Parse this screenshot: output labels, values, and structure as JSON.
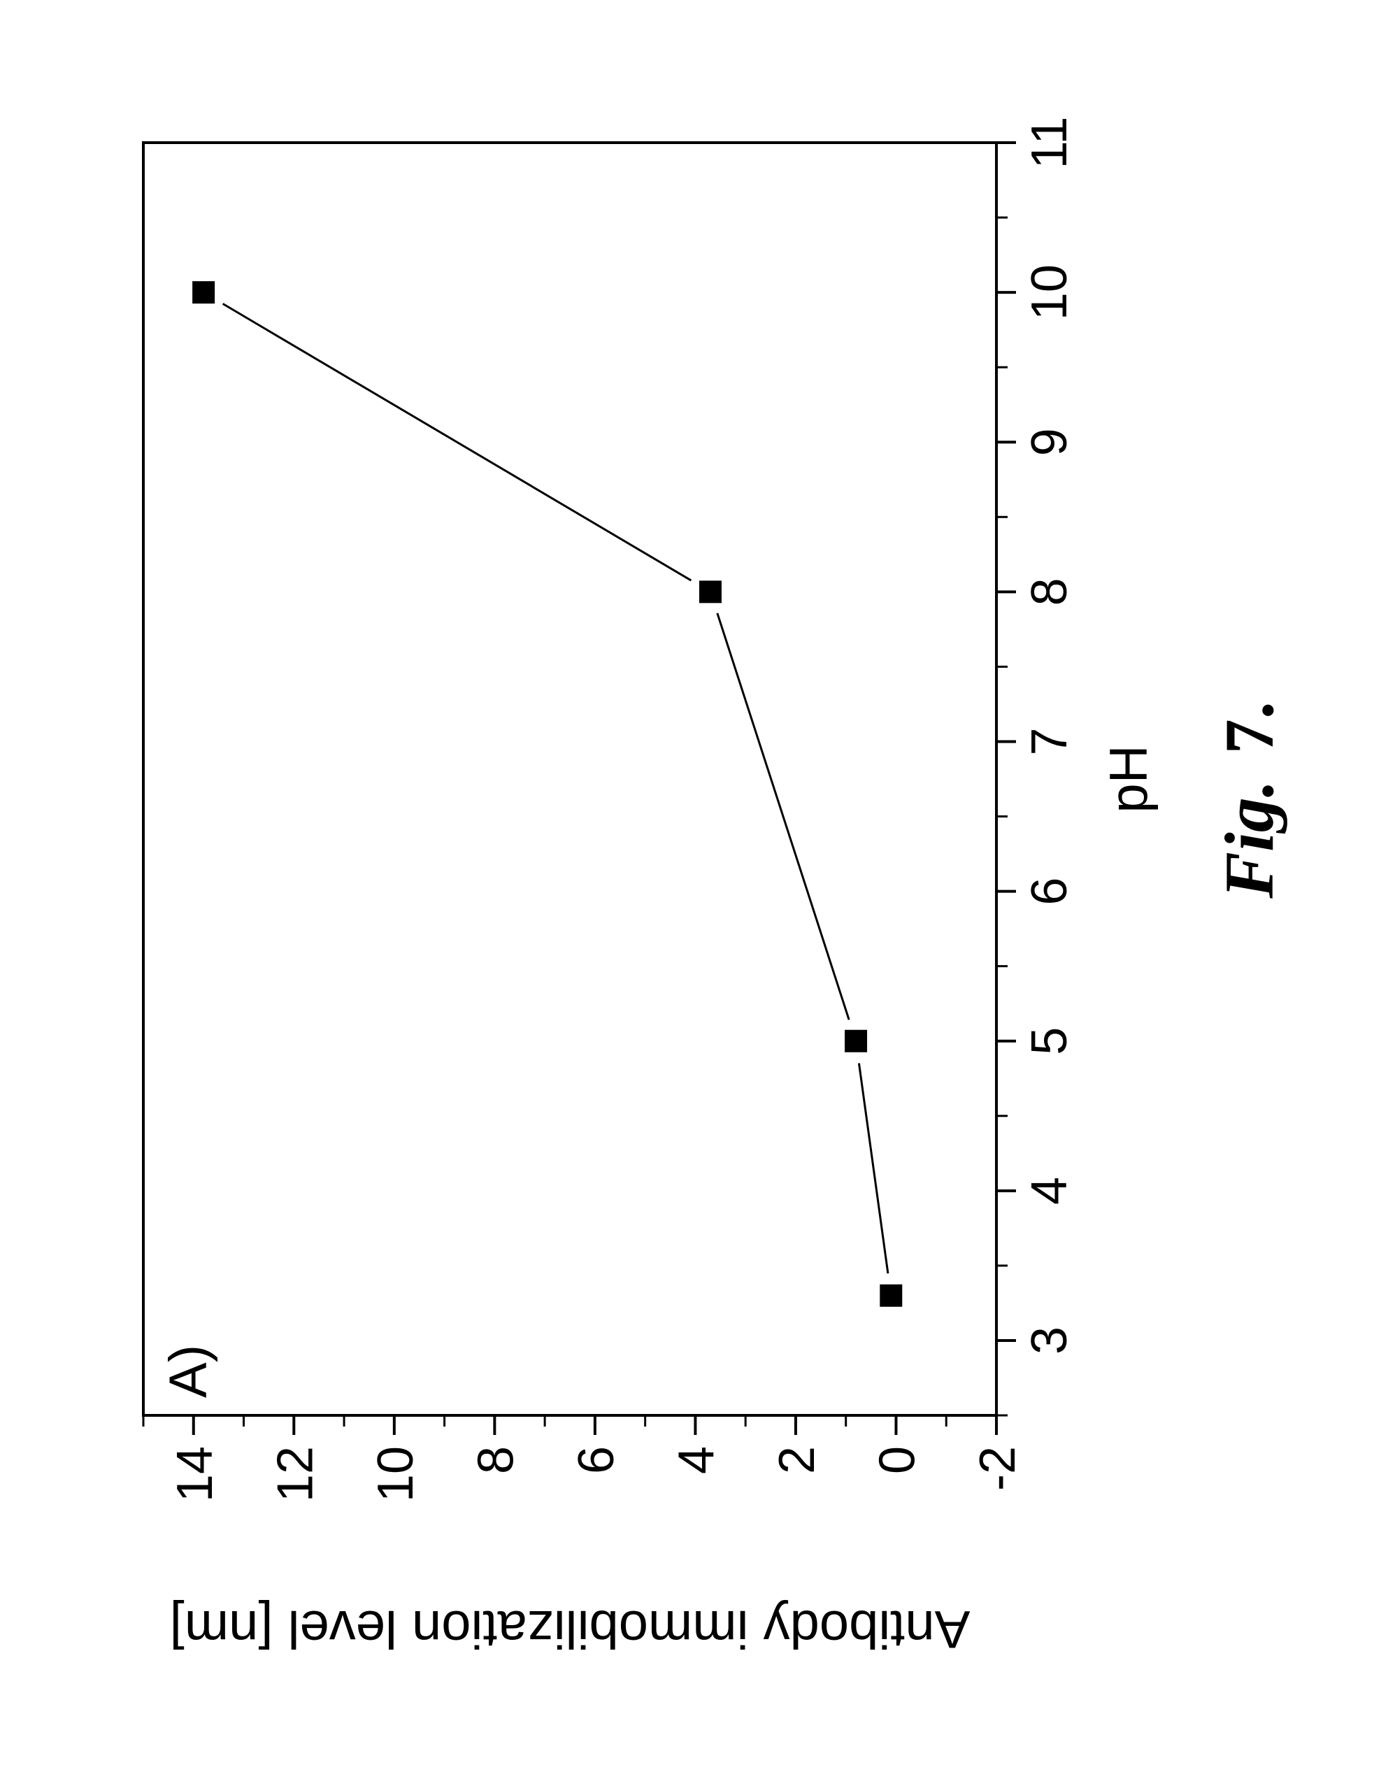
{
  "figure": {
    "caption_bold": "Fig.",
    "caption_num": "7."
  },
  "chart_data": {
    "type": "line",
    "panel_label": "A)",
    "xlabel": "pH",
    "ylabel": "Antibody immobilization level [nm]",
    "xlim": [
      2.5,
      11
    ],
    "ylim": [
      -2,
      15
    ],
    "xticks": [
      3,
      4,
      5,
      6,
      7,
      8,
      9,
      10,
      11
    ],
    "yticks": [
      -2,
      0,
      2,
      4,
      6,
      8,
      10,
      12,
      14
    ],
    "marker": "square",
    "series": [
      {
        "x": [
          3.3,
          5.0,
          8.0,
          10.0
        ],
        "y": [
          0.1,
          0.8,
          3.7,
          13.8
        ]
      }
    ]
  }
}
